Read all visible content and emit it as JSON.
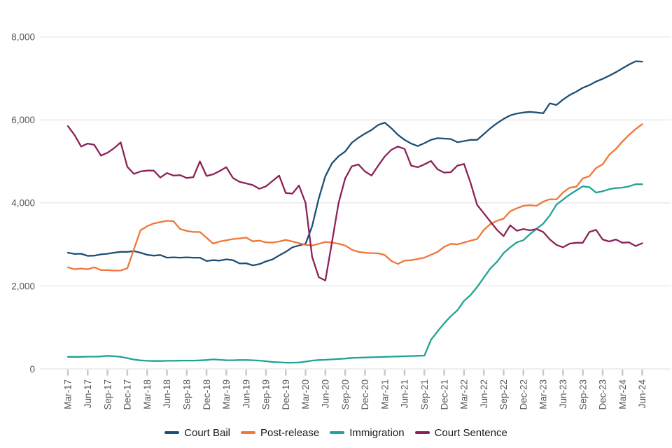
{
  "chart_data": {
    "type": "line",
    "title": "",
    "legend_position": "bottom",
    "grid": "horizontal",
    "y_axis": {
      "ticks": [
        0,
        2000,
        4000,
        6000,
        8000
      ],
      "tick_labels": [
        "0",
        "2,000",
        "4,000",
        "6,000",
        "8,000"
      ],
      "range": [
        0,
        8400
      ]
    },
    "x_axis": {
      "tick_labels": [
        "Mar-17",
        "Jun-17",
        "Sep-17",
        "Dec-17",
        "Mar-18",
        "Jun-18",
        "Sep-18",
        "Dec-18",
        "Mar-19",
        "Jun-19",
        "Sep-19",
        "Dec-19",
        "Mar-20",
        "Jun-20",
        "Sep-20",
        "Dec-20",
        "Mar-21",
        "Jun-21",
        "Sep-21",
        "Dec-21",
        "Mar-22",
        "Jun-22",
        "Sep-22",
        "Dec-22",
        "Mar-23",
        "Jun-23",
        "Sep-23",
        "Dec-23",
        "Mar-24",
        "Jun-24"
      ]
    },
    "months": [
      "Mar-17",
      "Apr-17",
      "May-17",
      "Jun-17",
      "Jul-17",
      "Aug-17",
      "Sep-17",
      "Oct-17",
      "Nov-17",
      "Dec-17",
      "Jan-18",
      "Feb-18",
      "Mar-18",
      "Apr-18",
      "May-18",
      "Jun-18",
      "Jul-18",
      "Aug-18",
      "Sep-18",
      "Oct-18",
      "Nov-18",
      "Dec-18",
      "Jan-19",
      "Feb-19",
      "Mar-19",
      "Apr-19",
      "May-19",
      "Jun-19",
      "Jul-19",
      "Aug-19",
      "Sep-19",
      "Oct-19",
      "Nov-19",
      "Dec-19",
      "Jan-20",
      "Feb-20",
      "Mar-20",
      "Apr-20",
      "May-20",
      "Jun-20",
      "Jul-20",
      "Aug-20",
      "Sep-20",
      "Oct-20",
      "Nov-20",
      "Dec-20",
      "Jan-21",
      "Feb-21",
      "Mar-21",
      "Apr-21",
      "May-21",
      "Jun-21",
      "Jul-21",
      "Aug-21",
      "Sep-21",
      "Oct-21",
      "Nov-21",
      "Dec-21",
      "Jan-22",
      "Feb-22",
      "Mar-22",
      "Apr-22",
      "May-22",
      "Jun-22",
      "Jul-22",
      "Aug-22",
      "Sep-22",
      "Oct-22",
      "Nov-22",
      "Dec-22",
      "Jan-23",
      "Feb-23",
      "Mar-23",
      "Apr-23",
      "May-23",
      "Jun-23",
      "Jul-23",
      "Aug-23",
      "Sep-23",
      "Oct-23",
      "Nov-23",
      "Dec-23",
      "Jan-24",
      "Feb-24",
      "Mar-24",
      "Apr-24",
      "May-24",
      "Jun-24"
    ],
    "series": [
      {
        "name": "Court Bail",
        "color": "#1d4f76",
        "values": [
          2800,
          2770,
          2775,
          2725,
          2730,
          2760,
          2775,
          2800,
          2820,
          2820,
          2840,
          2800,
          2750,
          2730,
          2745,
          2680,
          2690,
          2680,
          2690,
          2680,
          2680,
          2600,
          2620,
          2610,
          2640,
          2620,
          2540,
          2545,
          2495,
          2525,
          2590,
          2640,
          2735,
          2820,
          2930,
          2975,
          3015,
          3440,
          4110,
          4645,
          4955,
          5125,
          5240,
          5450,
          5570,
          5670,
          5760,
          5880,
          5935,
          5800,
          5640,
          5520,
          5430,
          5370,
          5440,
          5520,
          5560,
          5550,
          5540,
          5465,
          5490,
          5520,
          5520,
          5660,
          5800,
          5920,
          6025,
          6110,
          6155,
          6180,
          6195,
          6180,
          6160,
          6400,
          6360,
          6490,
          6600,
          6680,
          6775,
          6840,
          6925,
          6990,
          7065,
          7150,
          7245,
          7335,
          7415,
          7405
        ]
      },
      {
        "name": "Post-release",
        "color": "#f0763a",
        "values": [
          2450,
          2400,
          2420,
          2400,
          2450,
          2380,
          2380,
          2370,
          2370,
          2425,
          2880,
          3340,
          3440,
          3505,
          3540,
          3570,
          3560,
          3370,
          3325,
          3300,
          3300,
          3160,
          3020,
          3070,
          3100,
          3130,
          3145,
          3165,
          3075,
          3090,
          3050,
          3045,
          3070,
          3110,
          3070,
          3030,
          2990,
          2975,
          3015,
          3060,
          3045,
          3015,
          2975,
          2875,
          2820,
          2800,
          2790,
          2785,
          2745,
          2600,
          2530,
          2610,
          2620,
          2650,
          2680,
          2750,
          2820,
          2940,
          3015,
          3000,
          3045,
          3090,
          3130,
          3350,
          3490,
          3570,
          3620,
          3800,
          3870,
          3930,
          3945,
          3930,
          4030,
          4090,
          4085,
          4250,
          4370,
          4390,
          4590,
          4645,
          4840,
          4930,
          5160,
          5300,
          5480,
          5640,
          5780,
          5900
        ]
      },
      {
        "name": "Immigration",
        "color": "#1fa396",
        "values": [
          290,
          290,
          290,
          295,
          295,
          300,
          315,
          305,
          290,
          260,
          225,
          205,
          195,
          190,
          190,
          195,
          195,
          200,
          200,
          200,
          205,
          215,
          230,
          220,
          210,
          210,
          215,
          215,
          210,
          200,
          185,
          165,
          160,
          150,
          150,
          155,
          175,
          200,
          215,
          220,
          230,
          240,
          250,
          265,
          270,
          275,
          280,
          285,
          290,
          295,
          300,
          305,
          310,
          315,
          320,
          700,
          905,
          1100,
          1270,
          1410,
          1640,
          1780,
          1975,
          2200,
          2425,
          2580,
          2790,
          2930,
          3050,
          3100,
          3250,
          3380,
          3500,
          3700,
          3960,
          4080,
          4200,
          4300,
          4400,
          4380,
          4250,
          4280,
          4330,
          4360,
          4370,
          4400,
          4450,
          4450
        ]
      },
      {
        "name": "Court Sentence",
        "color": "#8b2257",
        "values": [
          5850,
          5640,
          5360,
          5430,
          5400,
          5140,
          5210,
          5320,
          5460,
          4870,
          4700,
          4760,
          4780,
          4780,
          4610,
          4720,
          4660,
          4670,
          4600,
          4620,
          5000,
          4650,
          4690,
          4770,
          4860,
          4600,
          4510,
          4470,
          4430,
          4340,
          4400,
          4530,
          4660,
          4240,
          4225,
          4420,
          4000,
          2700,
          2210,
          2130,
          3050,
          4000,
          4590,
          4880,
          4930,
          4760,
          4660,
          4900,
          5120,
          5280,
          5360,
          5300,
          4900,
          4860,
          4930,
          5010,
          4810,
          4730,
          4740,
          4900,
          4940,
          4480,
          3950,
          3750,
          3550,
          3350,
          3200,
          3460,
          3330,
          3370,
          3340,
          3370,
          3300,
          3120,
          2990,
          2930,
          3020,
          3040,
          3040,
          3300,
          3350,
          3120,
          3070,
          3120,
          3040,
          3050,
          2960,
          3030
        ]
      }
    ],
    "colors": {
      "gridline": "#e4e4e4",
      "tick_mark": "#c9c9c9",
      "axis_text": "#595959",
      "legend_text": "#1a1a1a",
      "background": "#ffffff"
    }
  }
}
